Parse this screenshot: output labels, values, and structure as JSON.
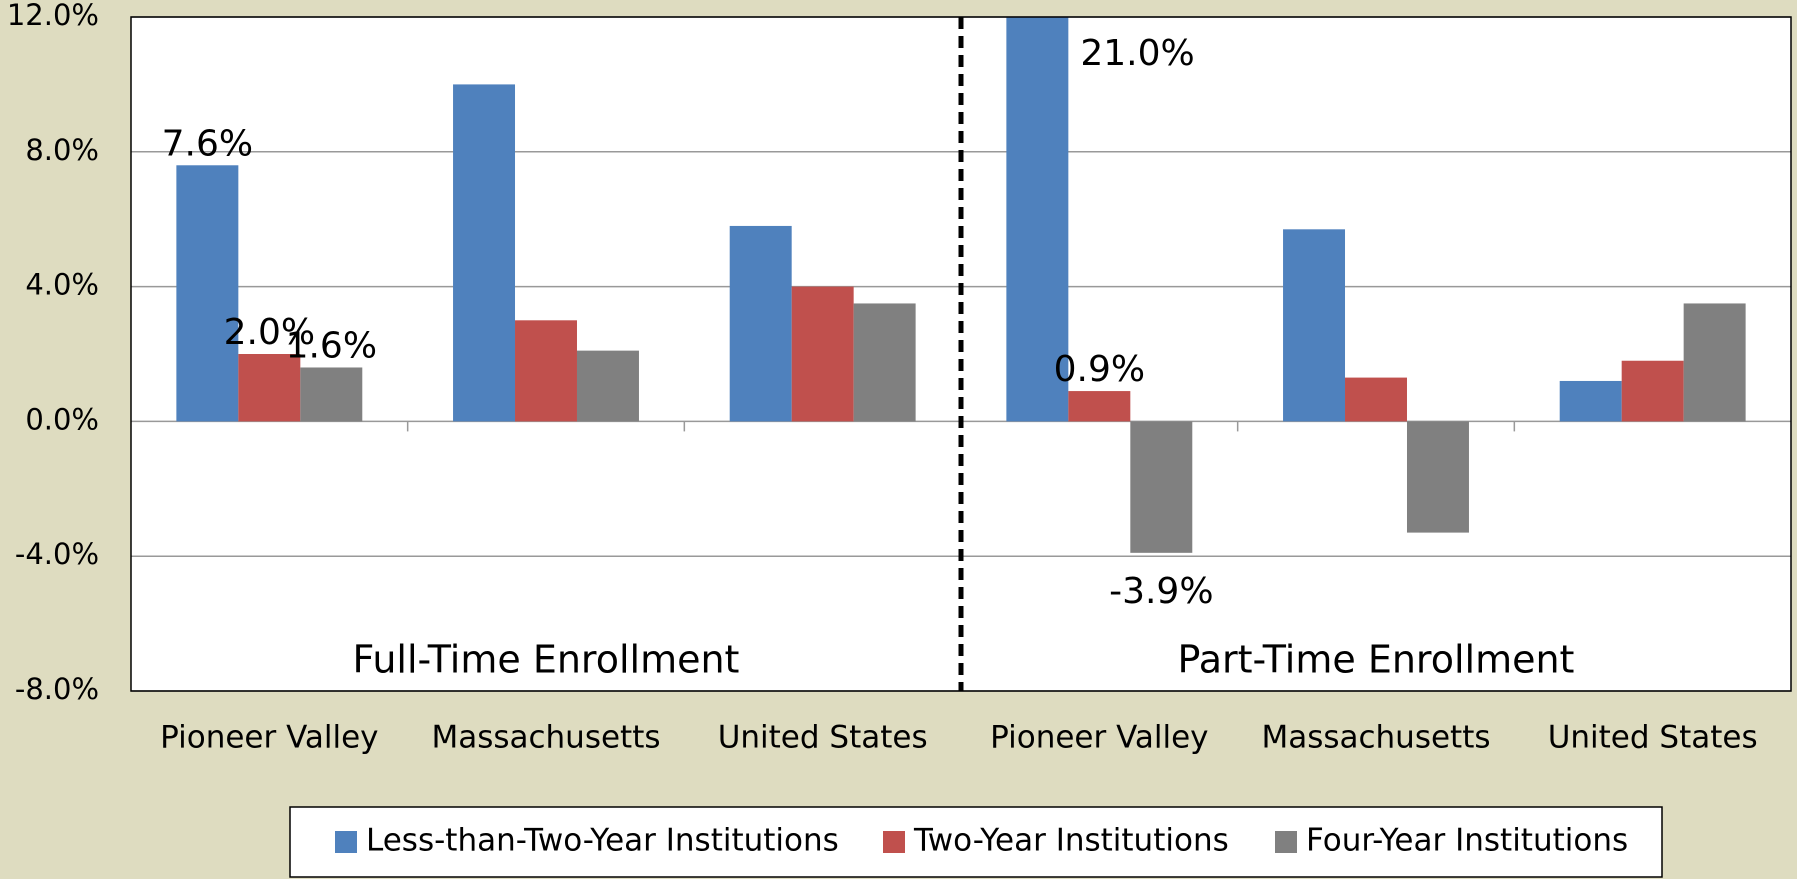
{
  "chart_data": {
    "type": "bar",
    "categories": [
      "Pioneer Valley",
      "Massachusetts",
      "United States",
      "Pioneer Valley",
      "Massachusetts",
      "United States"
    ],
    "series": [
      {
        "name": "Less-than-Two-Year Institutions",
        "color": "#4f81bd",
        "values": [
          7.6,
          10.0,
          5.8,
          21.0,
          5.7,
          1.2
        ],
        "value_labels": [
          "7.6%",
          null,
          null,
          "21.0%",
          null,
          null
        ]
      },
      {
        "name": "Two-Year Institutions",
        "color": "#c0504d",
        "values": [
          2.0,
          3.0,
          4.0,
          0.9,
          1.3,
          1.8
        ],
        "value_labels": [
          "2.0%",
          null,
          null,
          "0.9%",
          null,
          null
        ]
      },
      {
        "name": "Four-Year Institutions",
        "color": "#808080",
        "values": [
          1.6,
          2.1,
          3.5,
          -3.9,
          -3.3,
          3.5
        ],
        "value_labels": [
          "1.6%",
          null,
          null,
          "-3.9%",
          null,
          null
        ]
      }
    ],
    "annotations": [
      "Full-Time Enrollment",
      "Part-Time Enrollment"
    ],
    "ylim": [
      -8,
      12
    ],
    "yticks": [
      {
        "value": -8,
        "label": "-8.0%"
      },
      {
        "value": -4,
        "label": "-4.0%"
      },
      {
        "value": 0,
        "label": "0.0%"
      },
      {
        "value": 4,
        "label": "4.0%"
      },
      {
        "value": 8,
        "label": "8.0%"
      },
      {
        "value": 12,
        "label": "12.0%"
      }
    ],
    "grid": true,
    "legend": "bottom"
  }
}
